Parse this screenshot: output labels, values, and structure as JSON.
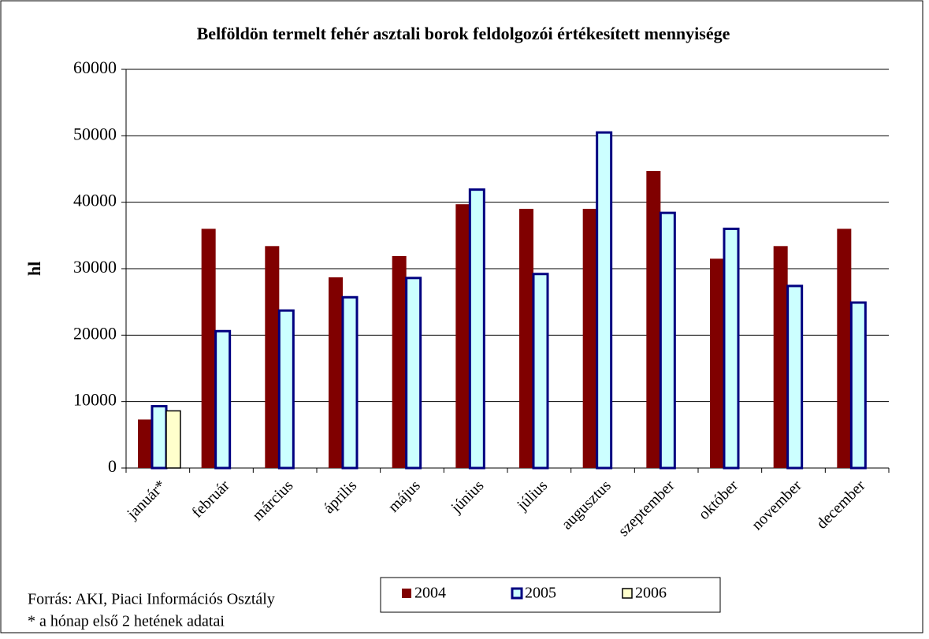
{
  "chart_data": {
    "type": "bar",
    "title": "Belföldön termelt fehér asztali borok feldolgozói értékesített mennyisége",
    "ylabel": "hl",
    "categories": [
      "január*",
      "február",
      "március",
      "április",
      "május",
      "június",
      "július",
      "augusztus",
      "szeptember",
      "október",
      "november",
      "december"
    ],
    "series": [
      {
        "name": "2004",
        "color": "#800000",
        "values": [
          7300,
          36000,
          33400,
          28700,
          31900,
          39700,
          39000,
          39000,
          44700,
          31500,
          33400,
          36000
        ]
      },
      {
        "name": "2005",
        "color": "#ccffff",
        "edge": "#000080",
        "values": [
          9300,
          20600,
          23700,
          25700,
          28600,
          41900,
          29200,
          50500,
          38400,
          36000,
          27400,
          24900
        ]
      },
      {
        "name": "2006",
        "color": "#ffffcc",
        "edge": "#000000",
        "values": [
          8600,
          null,
          null,
          null,
          null,
          null,
          null,
          null,
          null,
          null,
          null,
          null
        ]
      }
    ],
    "ylim": [
      0,
      60000
    ],
    "yticks": [
      0,
      10000,
      20000,
      30000,
      40000,
      50000,
      60000
    ],
    "grid": true,
    "notes": [
      "Forrás: AKI, Piaci Információs Osztály",
      "* a hónap első 2 hetének adatai"
    ]
  }
}
